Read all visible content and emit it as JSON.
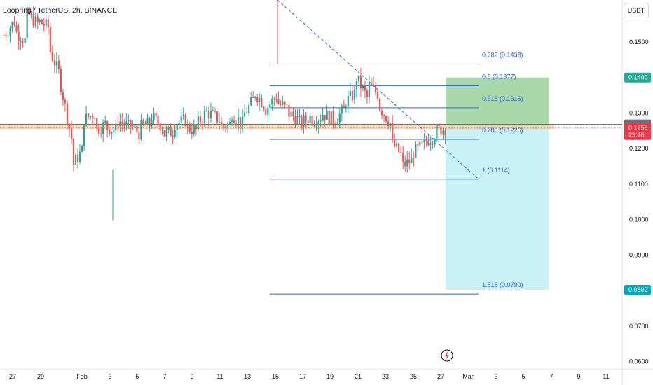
{
  "header": {
    "title": "Loopring / TetherUS, 2h, BINANCE",
    "unit": "USDT"
  },
  "chart_data": {
    "type": "candlestick",
    "symbol": "Loopring / TetherUS",
    "interval": "2h",
    "exchange": "BINANCE",
    "price_axis": {
      "range": [
        0.06,
        0.16
      ],
      "ticks": [
        "0.1500",
        "0.1400",
        "0.1300",
        "0.1200",
        "0.1100",
        "0.1000",
        "0.0900",
        "0.0800",
        "0.0700",
        "0.0600"
      ]
    },
    "time_axis": {
      "ticks": [
        "27",
        "29",
        "Feb",
        "3",
        "5",
        "7",
        "9",
        "11",
        "13",
        "15",
        "17",
        "19",
        "21",
        "23",
        "25",
        "27",
        "Mar",
        "3",
        "5",
        "7",
        "9",
        "11"
      ]
    },
    "price_path": [
      [
        0.152,
        0.156
      ],
      [
        0.153,
        0.15
      ],
      [
        0.158,
        0.155
      ],
      [
        0.156,
        0.154
      ],
      [
        0.148,
        0.14
      ],
      [
        0.138,
        0.122
      ],
      [
        0.115,
        0.12
      ],
      [
        0.128,
        0.13
      ],
      [
        0.125,
        0.127
      ],
      [
        0.126,
        0.125
      ],
      [
        0.128,
        0.126
      ],
      [
        0.127,
        0.124
      ],
      [
        0.126,
        0.127
      ],
      [
        0.129,
        0.126
      ],
      [
        0.124,
        0.125
      ],
      [
        0.127,
        0.128
      ],
      [
        0.126,
        0.125
      ],
      [
        0.127,
        0.131
      ],
      [
        0.13,
        0.128
      ],
      [
        0.126,
        0.127
      ],
      [
        0.13,
        0.127
      ],
      [
        0.129,
        0.134
      ],
      [
        0.136,
        0.132
      ],
      [
        0.131,
        0.135
      ],
      [
        0.133,
        0.131
      ],
      [
        0.13,
        0.128
      ],
      [
        0.127,
        0.129
      ],
      [
        0.128,
        0.129
      ],
      [
        0.13,
        0.128
      ],
      [
        0.128,
        0.131
      ],
      [
        0.133,
        0.136
      ],
      [
        0.14,
        0.134
      ],
      [
        0.138,
        0.135
      ],
      [
        0.132,
        0.127
      ],
      [
        0.122,
        0.118
      ],
      [
        0.115,
        0.117
      ],
      [
        0.119,
        0.121
      ],
      [
        0.122,
        0.124
      ],
      [
        0.125,
        0.1258
      ]
    ],
    "fibonacci": {
      "levels": [
        {
          "ratio": "0.382",
          "label": "0.382 (0.1438)",
          "price": 0.1438
        },
        {
          "ratio": "0.5",
          "label": "0.5 (0.1377)",
          "price": 0.1377
        },
        {
          "ratio": "0.618",
          "label": "0.618 (0.1315)",
          "price": 0.1315
        },
        {
          "ratio": "0.786",
          "label": "0.786 (0.1226)",
          "price": 0.1226
        },
        {
          "ratio": "1",
          "label": "1 (0.1114)",
          "price": 0.1114
        },
        {
          "ratio": "1.618",
          "label": "1.618 (0.0790)",
          "price": 0.079
        }
      ]
    },
    "long_position": {
      "entry": 0.1266,
      "target": 0.14,
      "stop": 0.0802
    },
    "support_zone": [
      0.1255,
      0.127
    ],
    "price_labels": [
      {
        "text": "0.1400",
        "color": "#22ab94",
        "price": 0.14
      },
      {
        "text": "0.1268",
        "color": "#2962ff",
        "price": 0.1268
      },
      {
        "text": "0.1266",
        "color": "#707070",
        "price": 0.1266
      },
      {
        "text": "0.1258",
        "color": "#f23645",
        "price": 0.1258,
        "sub": "29:46"
      },
      {
        "text": "0.0802",
        "color": "#00acc1",
        "price": 0.0802
      }
    ],
    "colors": {
      "up": "#26a69a",
      "down": "#ef5350",
      "fib": "#2962ff",
      "target_zone": "#a5d6a7",
      "stop_zone": "#b2ebf2"
    }
  }
}
